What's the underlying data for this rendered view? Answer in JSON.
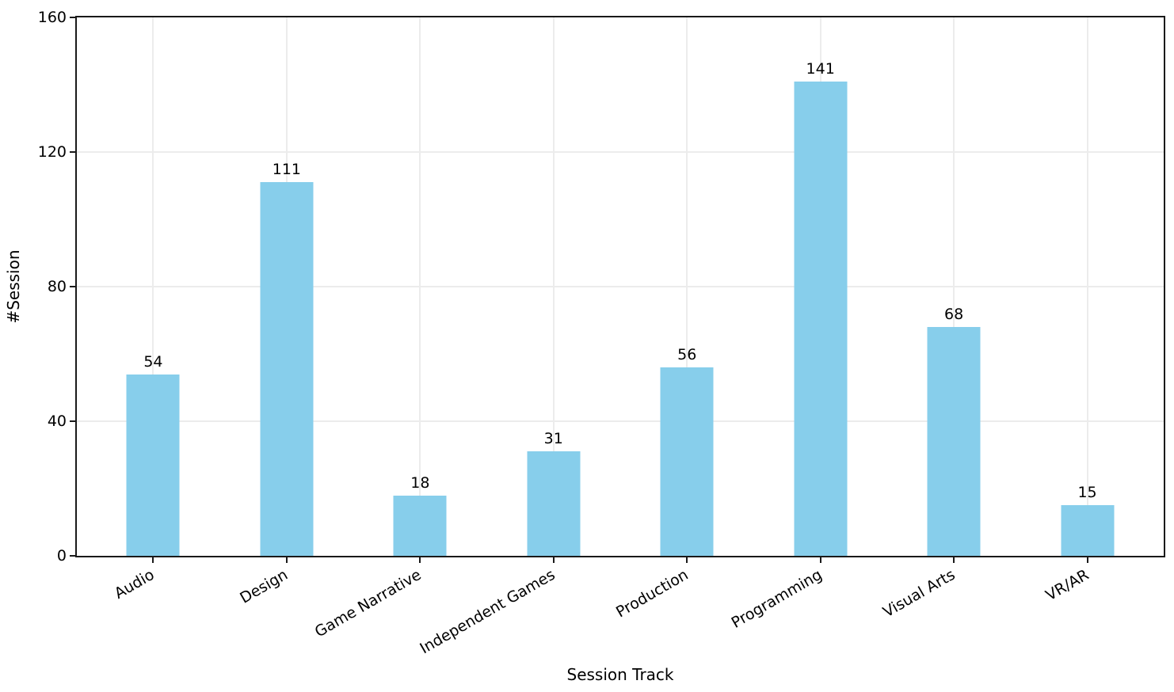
{
  "chart_data": {
    "type": "bar",
    "title": "",
    "xlabel": "Session Track",
    "ylabel": "#Session",
    "categories": [
      "Audio",
      "Design",
      "Game Narrative",
      "Independent Games",
      "Production",
      "Programming",
      "Visual Arts",
      "VR/AR"
    ],
    "values": [
      54,
      111,
      18,
      31,
      56,
      141,
      68,
      15
    ],
    "yticks": [
      0,
      40,
      80,
      120,
      160
    ],
    "ylim": [
      0,
      160
    ],
    "x_tick_rotation_deg": 30,
    "grid": true,
    "legend": "none",
    "bar_color": "#87CEEB",
    "grid_color": "#ececec",
    "spine_color": "#1a1a1a",
    "text_color": "#000000"
  }
}
